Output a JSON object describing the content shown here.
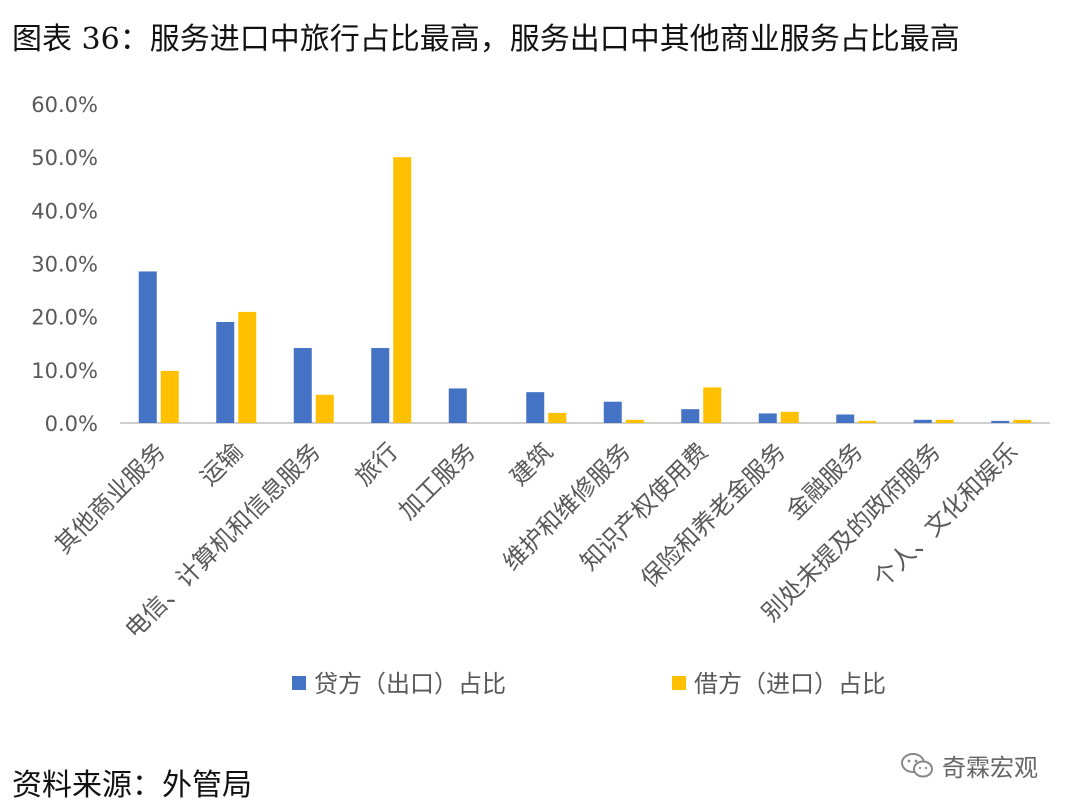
{
  "title": "图表 36：服务进口中旅行占比最高，服务出口中其他商业服务占比最高",
  "source": "资料来源：外管局",
  "watermark": "奇霖宏观",
  "colors": {
    "series1": "#4472C4",
    "series2": "#FFC000",
    "axis": "#BFBFBF",
    "text": "#595959"
  },
  "chart_data": {
    "type": "bar",
    "categories": [
      "其他商业服务",
      "运输",
      "电信、计算机和信息服务",
      "旅行",
      "加工服务",
      "建筑",
      "维护和维修服务",
      "知识产权使用费",
      "保险和养老金服务",
      "金融服务",
      "别处未提及的政府服务",
      "个人、文化和娱乐"
    ],
    "series": [
      {
        "name": "贷方（出口）占比",
        "values": [
          28.5,
          19.0,
          14.1,
          14.1,
          6.5,
          5.8,
          4.0,
          2.6,
          1.8,
          1.6,
          0.6,
          0.4
        ]
      },
      {
        "name": "借方（进口）占比",
        "values": [
          9.8,
          20.9,
          5.3,
          50.0,
          0.0,
          1.9,
          0.6,
          6.7,
          2.1,
          0.4,
          0.6,
          0.6
        ]
      }
    ],
    "yticks": [
      "0.0%",
      "10.0%",
      "20.0%",
      "30.0%",
      "40.0%",
      "50.0%",
      "60.0%"
    ],
    "ylim": [
      0,
      60
    ],
    "xlabel": "",
    "ylabel": "",
    "legend": "bottom",
    "grid": false
  }
}
